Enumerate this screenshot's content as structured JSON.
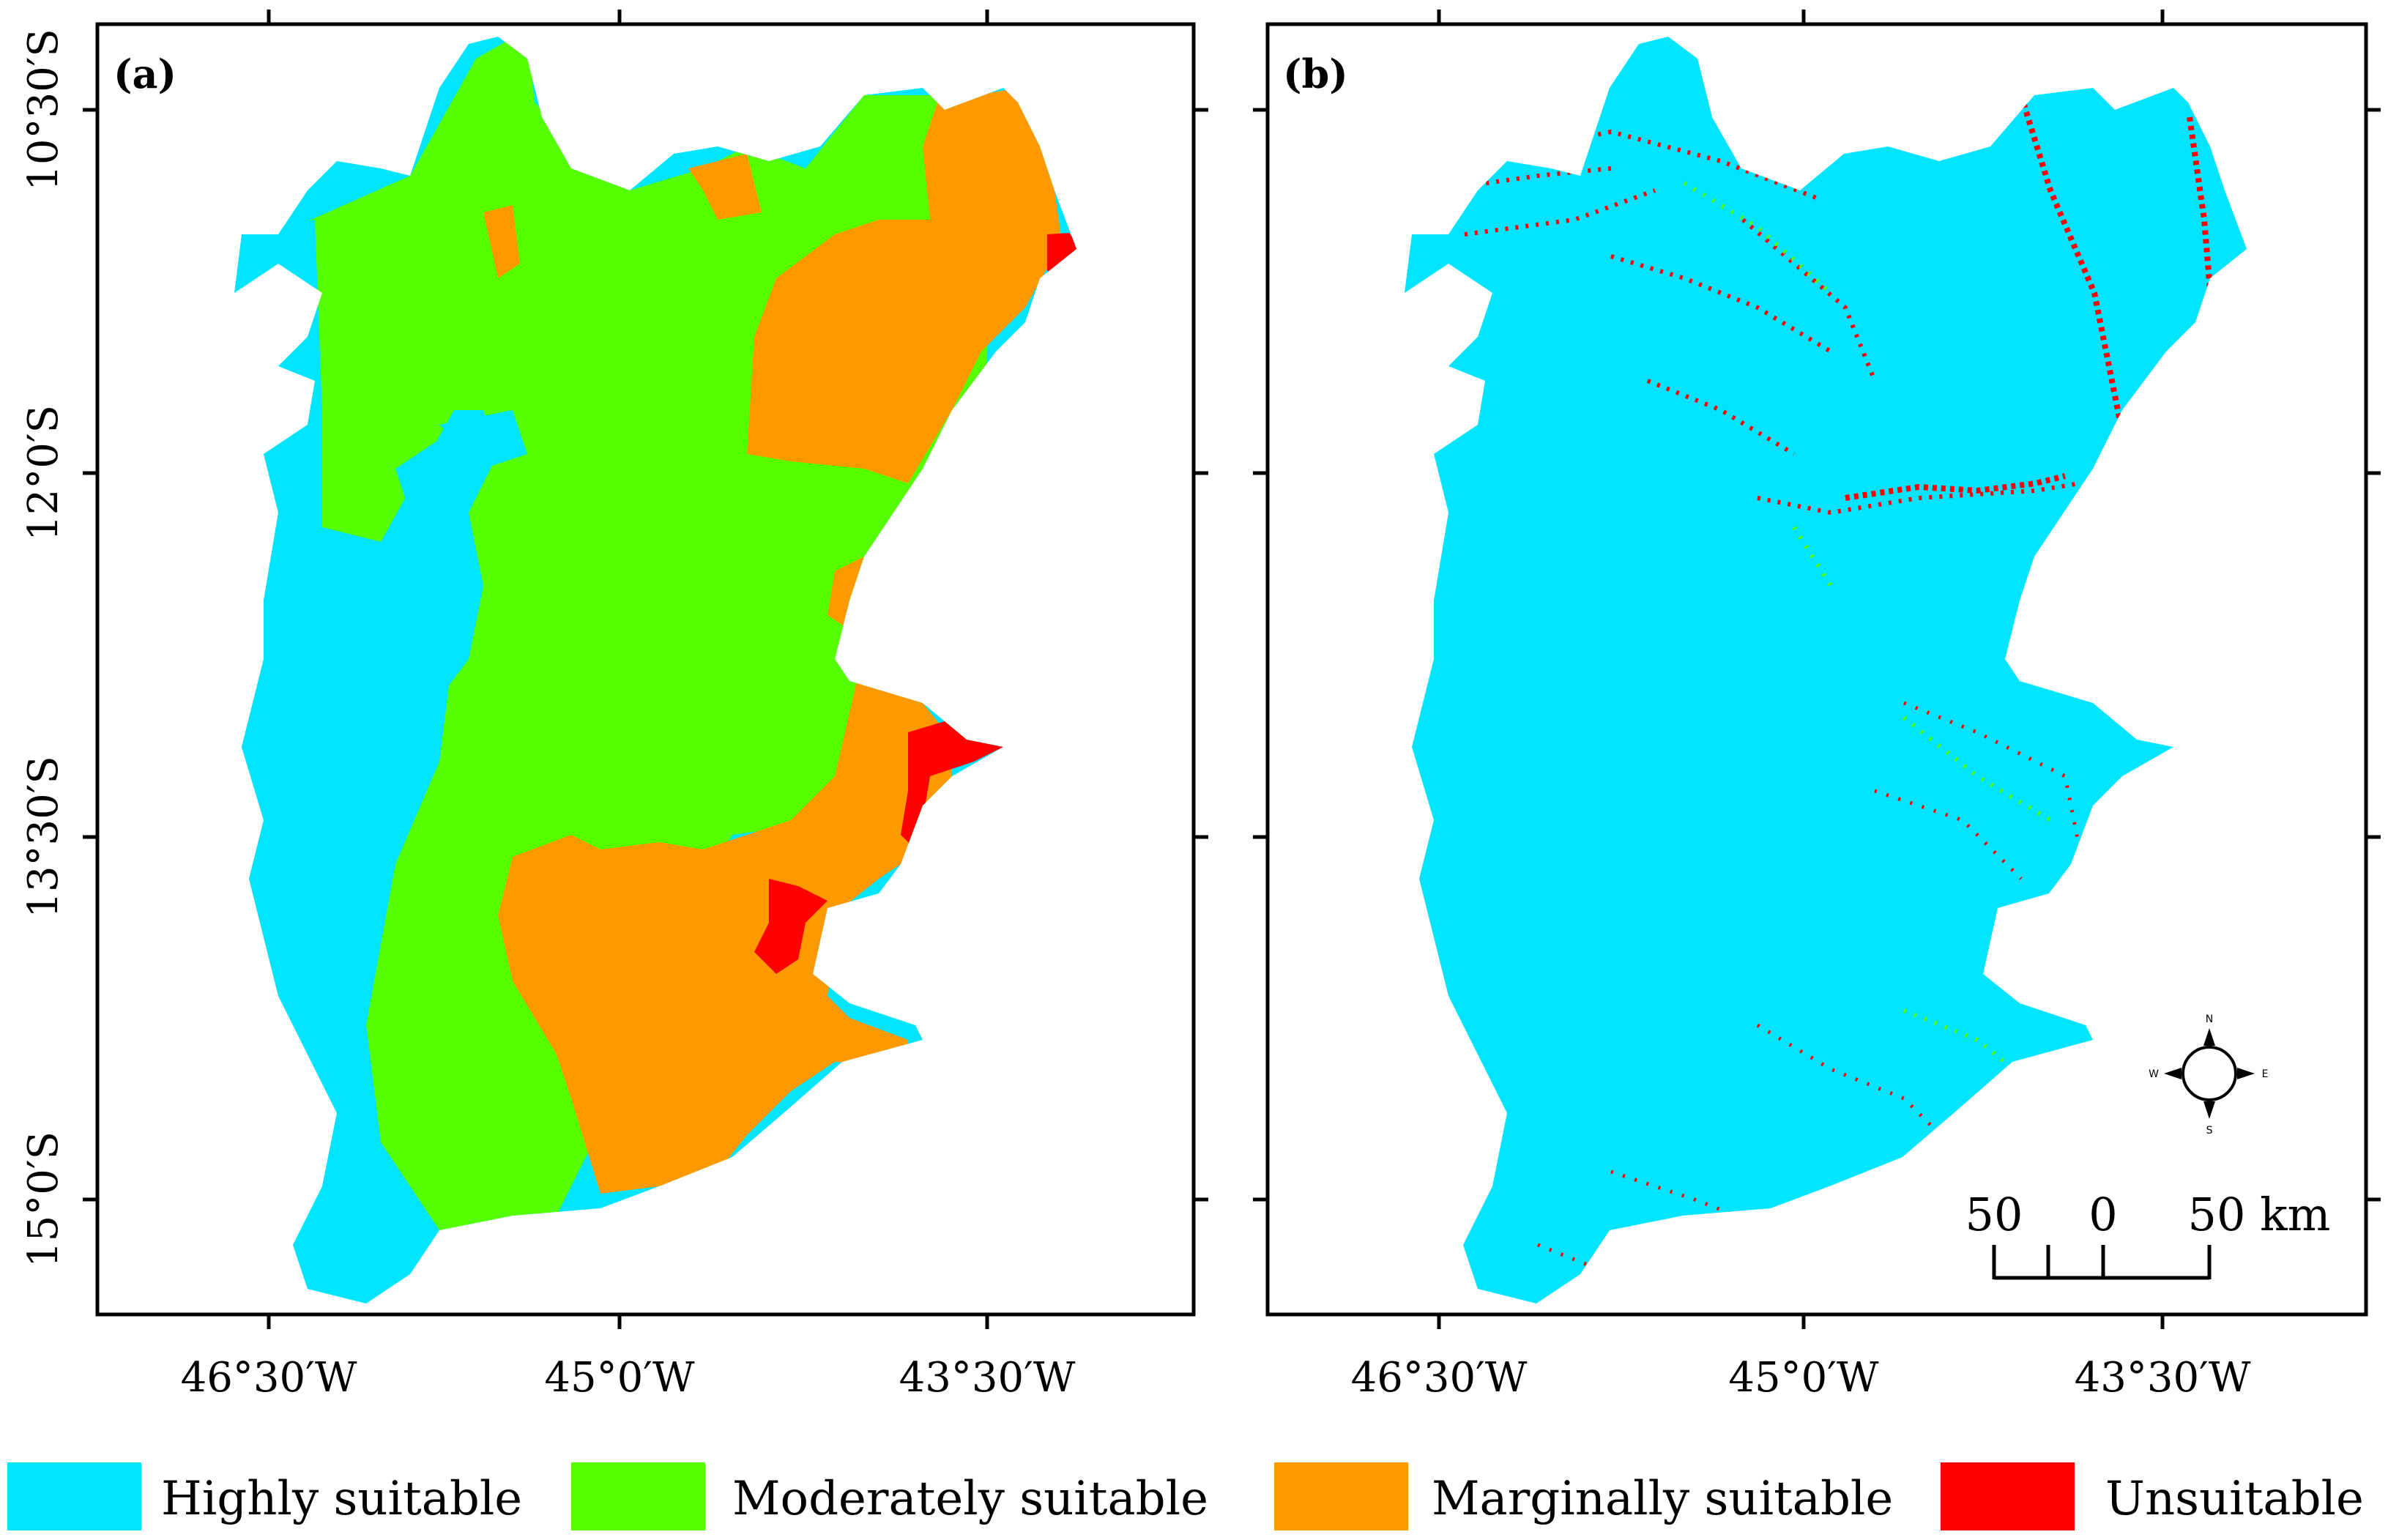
{
  "panels": [
    {
      "id": "a",
      "label": "(a)"
    },
    {
      "id": "b",
      "label": "(b)"
    }
  ],
  "latitude_ticks": [
    "10°30′S",
    "12°0′S",
    "13°30′S",
    "15°0′S"
  ],
  "longitude_ticks": [
    "46°30′W",
    "45°0′W",
    "43°30′W"
  ],
  "legend": {
    "items": [
      {
        "label": "Highly suitable",
        "color": "#00e5ff"
      },
      {
        "label": "Moderately suitable",
        "color": "#55ff00"
      },
      {
        "label": "Marginally suitable",
        "color": "#ff9900"
      },
      {
        "label": "Unsuitable",
        "color": "#ff0000"
      }
    ]
  },
  "scale_bar": {
    "left_label": "50",
    "mid_label": "0",
    "right_label": "50 km"
  },
  "compass": {
    "n": "N",
    "s": "S",
    "e": "E",
    "w": "W"
  }
}
